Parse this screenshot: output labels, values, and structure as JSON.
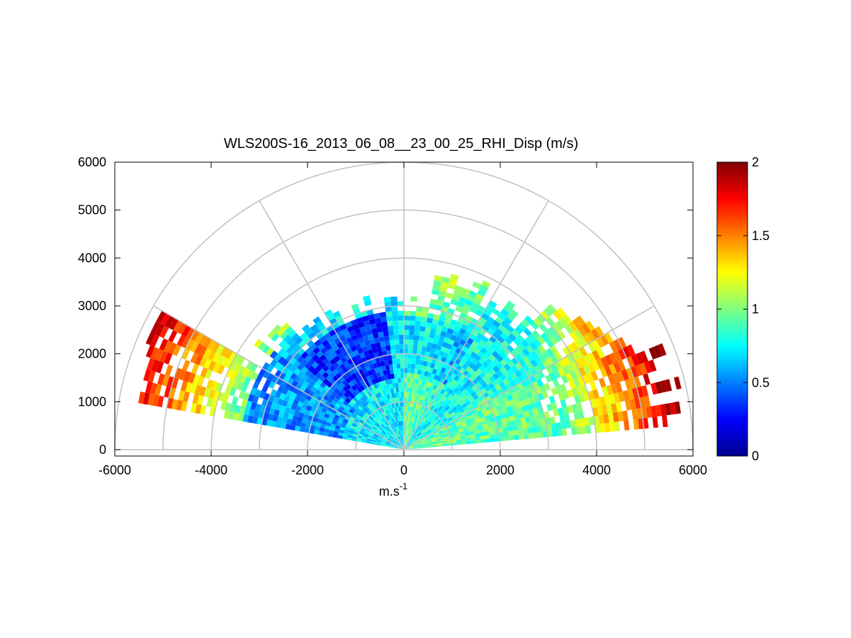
{
  "chart_data": {
    "type": "heatmap",
    "subtype": "polar RHI sector scan",
    "title": "WLS200S-16_2013_06_08__23_00_25_RHI_Disp (m/s)",
    "xlabel": "m.s",
    "xlabel_superscript": "-1",
    "ylabel": "",
    "xlim": [
      -6000,
      6000
    ],
    "ylim": [
      0,
      6000
    ],
    "x_ticks": [
      "-6000",
      "-4000",
      "-2000",
      "0",
      "2000",
      "4000",
      "6000"
    ],
    "y_ticks": [
      "0",
      "1000",
      "2000",
      "3000",
      "4000",
      "5000",
      "6000"
    ],
    "x_tick_values": [
      -6000,
      -4000,
      -2000,
      0,
      2000,
      4000,
      6000
    ],
    "y_tick_values": [
      0,
      1000,
      2000,
      3000,
      4000,
      5000,
      6000
    ],
    "polar_grid": {
      "range_rings_m": [
        1000,
        2000,
        3000,
        4000,
        5000,
        6000
      ],
      "spokes_deg": [
        0,
        30,
        60,
        90,
        120,
        150,
        180
      ]
    },
    "colorbar": {
      "min": 0,
      "max": 2,
      "ticks": [
        "0",
        "0.5",
        "1",
        "1.5",
        "2"
      ],
      "tick_values": [
        0,
        0.5,
        1,
        1.5,
        2
      ],
      "colormap": "jet"
    },
    "scan": {
      "elevation_min_deg": 5,
      "elevation_max_deg": 170,
      "range_max_m": 6000
    },
    "dispersion_regions": [
      {
        "el_range_deg": [
          5,
          40
        ],
        "range_m": [
          0,
          3000
        ],
        "value": 0.9,
        "desc": "near field right side, mostly green-cyan"
      },
      {
        "el_range_deg": [
          40,
          90
        ],
        "range_m": [
          0,
          2600
        ],
        "value": 0.75,
        "desc": "center-right, cyan-green"
      },
      {
        "el_range_deg": [
          90,
          130
        ],
        "range_m": [
          1200,
          2800
        ],
        "value": 0.4,
        "desc": "upper-left arc, blue"
      },
      {
        "el_range_deg": [
          130,
          170
        ],
        "range_m": [
          1500,
          3500
        ],
        "value": 0.55,
        "desc": "left sector, light blue"
      },
      {
        "el_range_deg": [
          8,
          35
        ],
        "range_m": [
          3800,
          5900
        ],
        "value": 1.8,
        "desc": "far right edge, red"
      },
      {
        "el_range_deg": [
          155,
          170
        ],
        "range_m": [
          4500,
          5800
        ],
        "value": 1.9,
        "desc": "far left edge, dark red"
      }
    ],
    "grid_on": true
  },
  "colors": {
    "grid": "#c0c0c0",
    "axis": "#000000",
    "background": "#ffffff"
  }
}
